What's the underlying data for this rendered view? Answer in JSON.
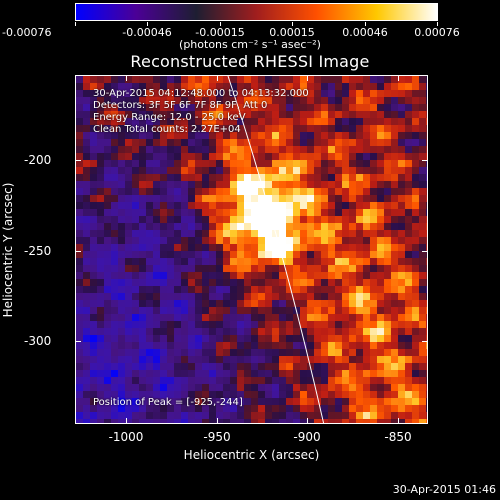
{
  "colorbar": {
    "tick_labels": [
      "-0.00076",
      "-0.00046",
      "-0.00015",
      "0.00015",
      "0.00046",
      "0.00076"
    ],
    "units": "(photons cm⁻² s⁻¹ asec⁻²)",
    "colors": [
      "#0000ff",
      "#4b0096",
      "#1e1e32",
      "#a01e1e",
      "#ff5000",
      "#ffc800",
      "#ffffff"
    ]
  },
  "title": "Reconstructed RHESSI Image",
  "info": {
    "time_range": "30-Apr-2015 04:12:48.000 to 04:13:32.000",
    "detectors": "Detectors: 3F 5F 6F 7F 8F 9F, Att 0",
    "energy_range": "Energy Range: 12.0 - 25.0 keV",
    "clean_counts": "Clean    Total counts: 2.27E+04",
    "peak": "Position of Peak = [-925,-244]"
  },
  "axes": {
    "xlabel": "Heliocentric X (arcsec)",
    "ylabel": "Heliocentric Y (arcsec)",
    "x_ticks": [
      "-1000",
      "-950",
      "-900",
      "-850"
    ],
    "y_ticks": [
      "-200",
      "-250",
      "-300"
    ],
    "x_range": [
      -1025,
      -832
    ],
    "y_range": [
      -180,
      -342
    ]
  },
  "peak_position": [
    -925,
    -244
  ],
  "timestamp": "30-Apr-2015 01:46"
}
